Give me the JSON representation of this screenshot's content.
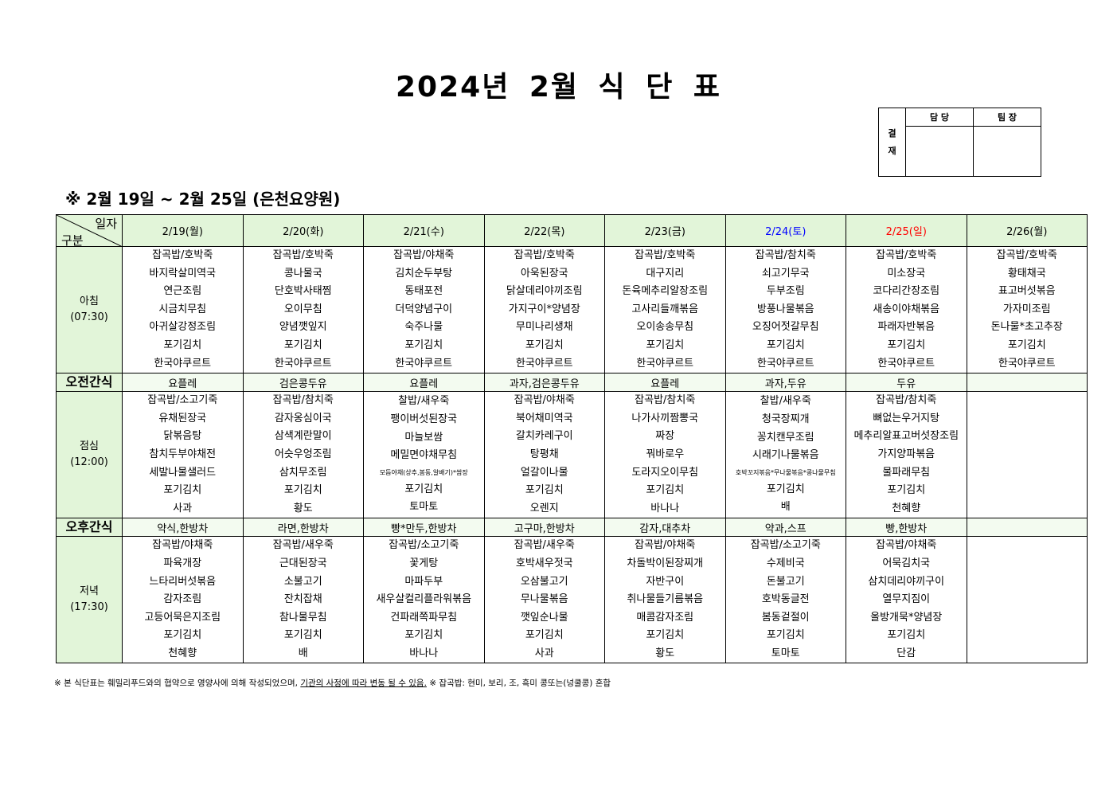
{
  "title": "2024년 2월 식 단 표",
  "approval": {
    "side_label_1": "결",
    "side_label_2": "재",
    "col1": "담 당",
    "col2": "팀 장"
  },
  "subtitle": "※ 2월 19일 ~ 2월 25일 (은천요양원)",
  "corner": {
    "top": "일자",
    "bottom": "구분"
  },
  "colors": {
    "header_bg": "#e2f5d9",
    "saturday": "#0000ff",
    "sunday": "#ff0000"
  },
  "days": [
    {
      "label": "2/19(월)"
    },
    {
      "label": "2/20(화)"
    },
    {
      "label": "2/21(수)"
    },
    {
      "label": "2/22(목)"
    },
    {
      "label": "2/23(금)"
    },
    {
      "label": "2/24(토)",
      "color": "#0000ff"
    },
    {
      "label": "2/25(일)",
      "color": "#ff0000"
    },
    {
      "label": "2/26(월)"
    }
  ],
  "rows": [
    {
      "type": "meal",
      "label": "아침",
      "time": "(07:30)",
      "cells": [
        [
          "잡곡밥/호박죽",
          "바지락살미역국",
          "연근조림",
          "시금치무침",
          "아귀살강정조림",
          "포기김치",
          "한국야쿠르트"
        ],
        [
          "잡곡밥/호박죽",
          "콩나물국",
          "단호박사태찜",
          "오이무침",
          "양념깻잎지",
          "포기김치",
          "한국야쿠르트"
        ],
        [
          "잡곡밥/야채죽",
          "김치순두부탕",
          "동태포전",
          "더덕양념구이",
          "숙주나물",
          "포기김치",
          "한국야쿠르트"
        ],
        [
          "잡곡밥/호박죽",
          "아욱된장국",
          "닭살데리야끼조림",
          "가지구이*양념장",
          "무미나리생채",
          "포기김치",
          "한국야쿠르트"
        ],
        [
          "잡곡밥/호박죽",
          "대구지리",
          "돈육메추리알장조림",
          "고사리들깨볶음",
          "오이송송무침",
          "포기김치",
          "한국야쿠르트"
        ],
        [
          "잡곡밥/참치죽",
          "쇠고기무국",
          "두부조림",
          "방풍나물볶음",
          "오징어젓갈무침",
          "포기김치",
          "한국야쿠르트"
        ],
        [
          "잡곡밥/호박죽",
          "미소장국",
          "코다리간장조림",
          "새송이야채볶음",
          "파래자반볶음",
          "포기김치",
          "한국야쿠르트"
        ],
        [
          "잡곡밥/호박죽",
          "황태채국",
          "표고버섯볶음",
          "가자미조림",
          "돈나물*초고추장",
          "포기김치",
          "한국야쿠르트"
        ]
      ]
    },
    {
      "type": "snack",
      "label": "오전간식",
      "cells": [
        "요플레",
        "검은콩두유",
        "요플레",
        "과자,검은콩두유",
        "요플레",
        "과자,두유",
        "두유",
        ""
      ]
    },
    {
      "type": "meal",
      "label": "점심",
      "time": "(12:00)",
      "cells": [
        [
          "잡곡밥/소고기죽",
          "유채된장국",
          "닭볶음탕",
          "참치두부야채전",
          "세발나물샐러드",
          "포기김치",
          "사과"
        ],
        [
          "잡곡밥/참치죽",
          "감자옹심이국",
          "삼색계란말이",
          "어슷우엉조림",
          "삼치무조림",
          "포기김치",
          "황도"
        ],
        [
          "찰밥/새우죽",
          "팽이버섯된장국",
          "마늘보쌈",
          "메밀면야채무침",
          "모듬야채(상추,봄동,알배기)*쌈장",
          "포기김치",
          "토마토"
        ],
        [
          "잡곡밥/야채죽",
          "북어채미역국",
          "갈치카레구이",
          "탕평채",
          "얼갈이나물",
          "포기김치",
          "오렌지"
        ],
        [
          "잡곡밥/참치죽",
          "나가사끼짬뽕국",
          "짜장",
          "꿔바로우",
          "도라지오이무침",
          "포기김치",
          "바나나"
        ],
        [
          "찰밥/새우죽",
          "청국장찌개",
          "꽁치캔무조림",
          "시래기나물볶음",
          "호박꼬지볶음*무나물볶음*콩나물무침",
          "포기김치",
          "배"
        ],
        [
          "잡곡밥/참치죽",
          "뼈없는우거지탕",
          "메추리알표고버섯장조림",
          "가지양파볶음",
          "물파래무침",
          "포기김치",
          "천혜향"
        ],
        []
      ]
    },
    {
      "type": "snack",
      "label": "오후간식",
      "cells": [
        "약식,한방차",
        "라면,한방차",
        "빵*만두,한방차",
        "고구마,한방차",
        "감자,대추차",
        "약과,스프",
        "빵,한방차",
        ""
      ]
    },
    {
      "type": "meal",
      "label": "저녁",
      "time": "(17:30)",
      "cells": [
        [
          "잡곡밥/야채죽",
          "파육개장",
          "느타리버섯볶음",
          "감자조림",
          "고등어묵은지조림",
          "포기김치",
          "천혜향"
        ],
        [
          "잡곡밥/새우죽",
          "근대된장국",
          "소불고기",
          "잔치잡채",
          "참나물무침",
          "포기김치",
          "배"
        ],
        [
          "잡곡밥/소고기죽",
          "꽃게탕",
          "마파두부",
          "새우살컬리플라워볶음",
          "건파래쪽파무침",
          "포기김치",
          "바나나"
        ],
        [
          "잡곡밥/새우죽",
          "호박새우젓국",
          "오삼불고기",
          "무나물볶음",
          "깻잎순나물",
          "포기김치",
          "사과"
        ],
        [
          "잡곡밥/야채죽",
          "차돌박이된장찌개",
          "자반구이",
          "취나물들기름볶음",
          "매콤감자조림",
          "포기김치",
          "황도"
        ],
        [
          "잡곡밥/소고기죽",
          "수제비국",
          "돈불고기",
          "호박동글전",
          "봄동겉절이",
          "포기김치",
          "토마토"
        ],
        [
          "잡곡밥/야채죽",
          "어묵김치국",
          "삼치데리야끼구이",
          "열무지짐이",
          "올방개묵*양념장",
          "포기김치",
          "단감"
        ],
        []
      ]
    }
  ],
  "footer": {
    "part1": "※ 본 식단표는 훼밀리푸드와의 협약으로 영양사에 의해 작성되었으며, ",
    "underlined": "기관의 사정에 따라 변동 될 수 있음.",
    "part2": " ※ 잡곡밥: 현미, 보리, 조, 흑미 콩또는(넝쿨콩) 혼합"
  }
}
